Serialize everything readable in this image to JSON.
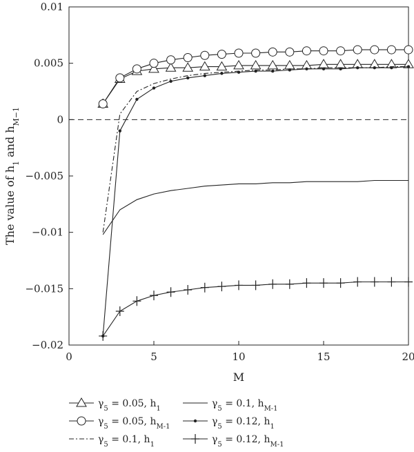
{
  "chart_data": {
    "type": "line",
    "xlabel": "M",
    "ylabel": "The value of h1 and hM−1",
    "xlim": [
      0,
      20
    ],
    "ylim": [
      -0.02,
      0.01
    ],
    "xticks": [
      0,
      5,
      10,
      15,
      20
    ],
    "yticks": [
      -0.02,
      -0.015,
      -0.01,
      -0.005,
      0,
      0.005,
      0.01
    ],
    "xtick_labels": [
      "0",
      "5",
      "10",
      "15",
      "20"
    ],
    "ytick_labels": [
      "−0.02",
      "−0.015",
      "−0.01",
      "−0.005",
      "0",
      "0.005",
      "0.01"
    ],
    "grid": false,
    "legend_position": "bottom",
    "reference_line": {
      "y": 0,
      "style": "dashed"
    },
    "series": [
      {
        "name": "γ5 = 0.05, h1",
        "marker": "triangle",
        "line": "solid",
        "x": [
          2,
          3,
          4,
          5,
          6,
          7,
          8,
          9,
          10,
          11,
          12,
          13,
          14,
          15,
          16,
          17,
          18,
          19,
          20
        ],
        "values": [
          0.0014,
          0.0036,
          0.0043,
          0.0045,
          0.0046,
          0.0046,
          0.0047,
          0.0047,
          0.0048,
          0.0048,
          0.0048,
          0.0048,
          0.0048,
          0.0049,
          0.0049,
          0.0049,
          0.0049,
          0.0049,
          0.0049
        ]
      },
      {
        "name": "γ5 = 0.05, hM-1",
        "marker": "circle",
        "line": "solid",
        "x": [
          2,
          3,
          4,
          5,
          6,
          7,
          8,
          9,
          10,
          11,
          12,
          13,
          14,
          15,
          16,
          17,
          18,
          19,
          20
        ],
        "values": [
          0.0014,
          0.0037,
          0.0045,
          0.005,
          0.0053,
          0.0055,
          0.0057,
          0.0058,
          0.0059,
          0.0059,
          0.006,
          0.006,
          0.0061,
          0.0061,
          0.0061,
          0.0062,
          0.0062,
          0.0062,
          0.0062
        ]
      },
      {
        "name": "γ5 = 0.1, h1",
        "marker": "none",
        "line": "dashdot",
        "x": [
          2,
          3,
          4,
          5,
          6,
          7,
          8,
          9,
          10,
          11,
          12,
          13,
          14,
          15,
          16,
          17,
          18,
          19,
          20
        ],
        "values": [
          -0.01,
          0.0005,
          0.0025,
          0.0032,
          0.0036,
          0.0039,
          0.0041,
          0.0042,
          0.0043,
          0.0044,
          0.0044,
          0.0045,
          0.0045,
          0.0046,
          0.0046,
          0.0046,
          0.0046,
          0.0047,
          0.0047
        ]
      },
      {
        "name": "γ5 = 0.1, hM-1",
        "marker": "none",
        "line": "solid",
        "x": [
          2,
          3,
          4,
          5,
          6,
          7,
          8,
          9,
          10,
          11,
          12,
          13,
          14,
          15,
          16,
          17,
          18,
          19,
          20
        ],
        "values": [
          -0.0102,
          -0.008,
          -0.0071,
          -0.0066,
          -0.0063,
          -0.0061,
          -0.0059,
          -0.0058,
          -0.0057,
          -0.0057,
          -0.0056,
          -0.0056,
          -0.0055,
          -0.0055,
          -0.0055,
          -0.0055,
          -0.0054,
          -0.0054,
          -0.0054
        ]
      },
      {
        "name": "γ5 = 0.12, h1",
        "marker": "dot",
        "line": "solid",
        "x": [
          2,
          3,
          4,
          5,
          6,
          7,
          8,
          9,
          10,
          11,
          12,
          13,
          14,
          15,
          16,
          17,
          18,
          19,
          20
        ],
        "values": [
          -0.0192,
          -0.001,
          0.0018,
          0.0028,
          0.0034,
          0.0037,
          0.0039,
          0.0041,
          0.0042,
          0.0043,
          0.0043,
          0.0044,
          0.0045,
          0.0045,
          0.0045,
          0.0046,
          0.0046,
          0.0046,
          0.0047
        ]
      },
      {
        "name": "γ5 = 0.12, hM-1",
        "marker": "plus",
        "line": "solid",
        "x": [
          2,
          3,
          4,
          5,
          6,
          7,
          8,
          9,
          10,
          11,
          12,
          13,
          14,
          15,
          16,
          17,
          18,
          19,
          20
        ],
        "values": [
          -0.0192,
          -0.017,
          -0.0161,
          -0.0156,
          -0.0153,
          -0.0151,
          -0.0149,
          -0.0148,
          -0.0147,
          -0.0147,
          -0.0146,
          -0.0146,
          -0.0145,
          -0.0145,
          -0.0145,
          -0.0144,
          -0.0144,
          -0.0144,
          -0.0144
        ]
      }
    ],
    "legend": [
      {
        "parts": [
          "γ",
          "5",
          " = 0.05, h",
          "1"
        ]
      },
      {
        "parts": [
          "γ",
          "5",
          " = 0.1, h",
          "M-1"
        ]
      },
      {
        "parts": [
          "γ",
          "5",
          " = 0.05, h",
          "M-1"
        ]
      },
      {
        "parts": [
          "γ",
          "5",
          " = 0.12, h",
          "1"
        ]
      },
      {
        "parts": [
          "γ",
          "5",
          " = 0.1, h",
          "1"
        ]
      },
      {
        "parts": [
          "γ",
          "5",
          " = 0.12, h",
          "M-1"
        ]
      }
    ]
  }
}
